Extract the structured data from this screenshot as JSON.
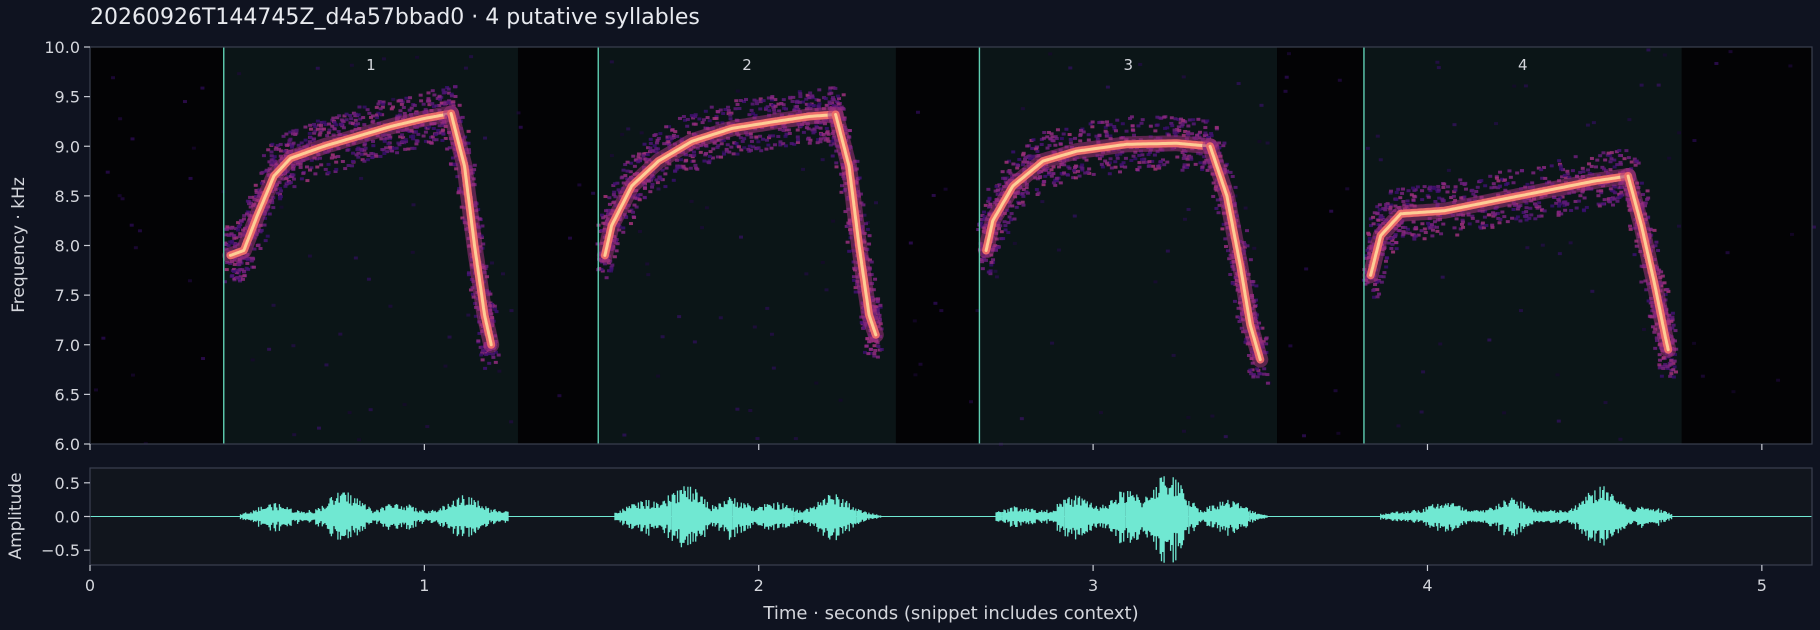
{
  "title": "20260926T144745Z_d4a57bbad0  ·  4 putative syllables",
  "colors": {
    "figure_bg": "#0f1320",
    "spectrogram_bg": "#030305",
    "syllable_region": "#0b1517",
    "boundary": "#5fcfb3",
    "waveform": "#70e8d2",
    "panel_border": "#3b4050",
    "text": "#d4d6dc"
  },
  "chart_data": [
    {
      "type": "heatmap",
      "name": "spectrogram",
      "colormap": "magma",
      "ylabel": "Frequency · kHz",
      "xlim": [
        0,
        5.15
      ],
      "ylim": [
        6.0,
        10.0
      ],
      "yticks": [
        "6.0",
        "6.5",
        "7.0",
        "7.5",
        "8.0",
        "8.5",
        "9.0",
        "9.5",
        "10.0"
      ],
      "grid": false,
      "syllables": [
        {
          "label": "1",
          "start": 0.4,
          "end": 1.28,
          "contour": [
            [
              0.42,
              7.9
            ],
            [
              0.46,
              7.95
            ],
            [
              0.5,
              8.3
            ],
            [
              0.55,
              8.7
            ],
            [
              0.6,
              8.88
            ],
            [
              0.7,
              9.0
            ],
            [
              0.8,
              9.1
            ],
            [
              0.9,
              9.2
            ],
            [
              1.0,
              9.28
            ],
            [
              1.08,
              9.33
            ]
          ],
          "drop": [
            [
              1.08,
              9.33
            ],
            [
              1.12,
              8.8
            ],
            [
              1.15,
              8.0
            ],
            [
              1.18,
              7.3
            ],
            [
              1.2,
              7.0
            ]
          ]
        },
        {
          "label": "2",
          "start": 1.52,
          "end": 2.41,
          "contour": [
            [
              1.54,
              7.9
            ],
            [
              1.56,
              8.2
            ],
            [
              1.62,
              8.6
            ],
            [
              1.7,
              8.85
            ],
            [
              1.8,
              9.05
            ],
            [
              1.92,
              9.18
            ],
            [
              2.05,
              9.25
            ],
            [
              2.15,
              9.3
            ],
            [
              2.23,
              9.32
            ]
          ],
          "drop": [
            [
              2.23,
              9.32
            ],
            [
              2.27,
              8.8
            ],
            [
              2.3,
              8.0
            ],
            [
              2.33,
              7.3
            ],
            [
              2.35,
              7.1
            ]
          ]
        },
        {
          "label": "3",
          "start": 2.66,
          "end": 3.55,
          "contour": [
            [
              2.68,
              7.95
            ],
            [
              2.7,
              8.25
            ],
            [
              2.76,
              8.6
            ],
            [
              2.85,
              8.85
            ],
            [
              2.95,
              8.95
            ],
            [
              3.1,
              9.02
            ],
            [
              3.25,
              9.03
            ],
            [
              3.35,
              9.0
            ]
          ],
          "drop": [
            [
              3.35,
              9.0
            ],
            [
              3.4,
              8.5
            ],
            [
              3.44,
              7.8
            ],
            [
              3.47,
              7.2
            ],
            [
              3.5,
              6.85
            ]
          ]
        },
        {
          "label": "4",
          "start": 3.81,
          "end": 4.76,
          "contour": [
            [
              3.83,
              7.7
            ],
            [
              3.86,
              8.1
            ],
            [
              3.92,
              8.32
            ],
            [
              4.05,
              8.35
            ],
            [
              4.2,
              8.45
            ],
            [
              4.35,
              8.55
            ],
            [
              4.5,
              8.65
            ],
            [
              4.6,
              8.7
            ]
          ],
          "drop": [
            [
              4.6,
              8.7
            ],
            [
              4.64,
              8.2
            ],
            [
              4.68,
              7.6
            ],
            [
              4.71,
              7.1
            ],
            [
              4.72,
              6.95
            ]
          ]
        }
      ]
    },
    {
      "type": "line",
      "name": "waveform",
      "xlabel": "Time · seconds (snippet includes context)",
      "ylabel": "Amplitude",
      "xlim": [
        0,
        5.15
      ],
      "ylim": [
        -0.72,
        0.72
      ],
      "xticks": [
        "0",
        "1",
        "2",
        "3",
        "4",
        "5"
      ],
      "yticks": [
        "0.5",
        "0.0",
        "−0.5"
      ],
      "bursts": [
        {
          "start": 0.4,
          "end": 1.28,
          "peaks": [
            [
              0.55,
              0.2
            ],
            [
              0.76,
              0.38
            ],
            [
              0.92,
              0.22
            ],
            [
              1.12,
              0.32
            ],
            [
              1.22,
              0.12
            ]
          ]
        },
        {
          "start": 1.52,
          "end": 2.41,
          "peaks": [
            [
              1.66,
              0.25
            ],
            [
              1.78,
              0.48
            ],
            [
              1.92,
              0.3
            ],
            [
              2.05,
              0.22
            ],
            [
              2.22,
              0.34
            ]
          ]
        },
        {
          "start": 2.66,
          "end": 3.55,
          "peaks": [
            [
              2.78,
              0.16
            ],
            [
              2.95,
              0.32
            ],
            [
              3.1,
              0.4
            ],
            [
              3.22,
              0.65
            ],
            [
              3.4,
              0.26
            ]
          ]
        },
        {
          "start": 3.81,
          "end": 4.76,
          "peaks": [
            [
              3.92,
              0.08
            ],
            [
              4.05,
              0.24
            ],
            [
              4.25,
              0.28
            ],
            [
              4.52,
              0.46
            ],
            [
              4.65,
              0.16
            ]
          ]
        }
      ]
    }
  ]
}
